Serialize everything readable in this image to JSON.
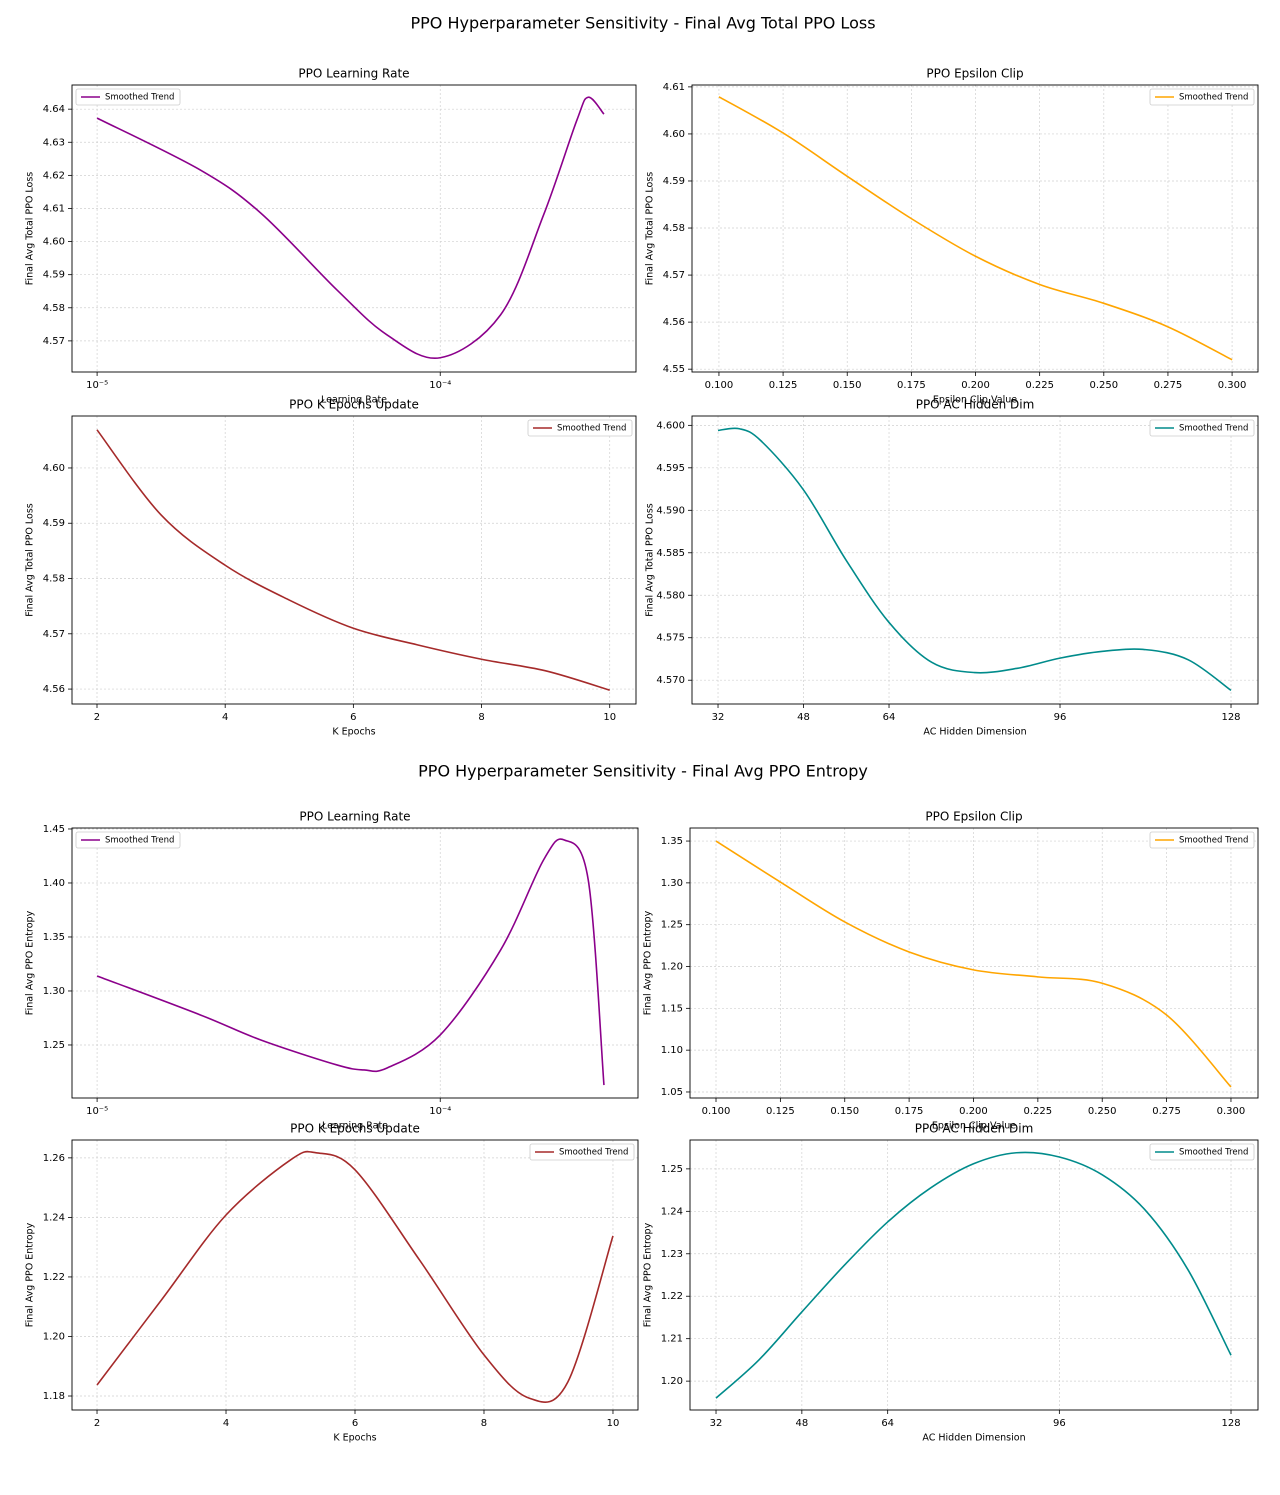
{
  "figure_titles": [
    "PPO Hyperparameter Sensitivity - Final Avg Total PPO Loss",
    "PPO Hyperparameter Sensitivity - Final Avg PPO Entropy"
  ],
  "chart_data": [
    {
      "type": "line",
      "title": "PPO Learning Rate",
      "xlabel": "Learning Rate",
      "ylabel": "Final Avg Total PPO Loss",
      "xscale": "log",
      "grid": true,
      "legend": "upper left",
      "x": [
        1e-05,
        2e-05,
        3e-05,
        5e-05,
        7e-05,
        0.0001,
        0.00015,
        0.0002,
        0.00025,
        0.00027,
        0.0003
      ],
      "series": [
        {
          "name": "Smoothed Trend",
          "color": "#8b008b",
          "values": [
            4.6373,
            4.6216,
            4.6086,
            4.5854,
            4.5718,
            4.5649,
            4.5779,
            4.608,
            4.6366,
            4.6436,
            4.6385
          ]
        }
      ],
      "xlim": [
        8.45e-06,
        0.000372
      ],
      "xticks": [
        {
          "value": 1e-05,
          "label": "10⁻⁵"
        },
        {
          "value": 0.0001,
          "label": "10⁻⁴"
        }
      ],
      "ylim": [
        4.5606,
        4.6473
      ],
      "yticks": [
        4.57,
        4.58,
        4.59,
        {
          "value": 4.6,
          "label": "4.60"
        },
        4.61,
        4.62,
        4.63,
        4.64
      ]
    },
    {
      "type": "line",
      "title": "PPO Epsilon Clip",
      "xlabel": "Epsilon Clip Value",
      "ylabel": "Final Avg Total PPO Loss",
      "grid": true,
      "legend": "upper right",
      "x": [
        0.1,
        0.125,
        0.15,
        0.175,
        0.2,
        0.225,
        0.25,
        0.275,
        0.3
      ],
      "series": [
        {
          "name": "Smoothed Trend",
          "color": "#ffa500",
          "values": [
            4.6079,
            4.6002,
            4.591,
            4.582,
            4.574,
            4.568,
            4.564,
            4.559,
            4.552
          ]
        }
      ],
      "xlim": [
        0.0895,
        0.3101
      ],
      "xticks": [
        {
          "value": 0.1,
          "label": "0.100"
        },
        0.125,
        {
          "value": 0.15,
          "label": "0.150"
        },
        0.175,
        {
          "value": 0.2,
          "label": "0.200"
        },
        0.225,
        {
          "value": 0.25,
          "label": "0.250"
        },
        0.275,
        {
          "value": 0.3,
          "label": "0.300"
        }
      ],
      "ylim": [
        4.5494,
        4.6104
      ],
      "yticks": [
        4.55,
        4.56,
        4.57,
        4.58,
        4.59,
        {
          "value": 4.6,
          "label": "4.60"
        },
        4.61
      ]
    },
    {
      "type": "line",
      "title": "PPO K Epochs Update",
      "xlabel": "K Epochs",
      "ylabel": "Final Avg Total PPO Loss",
      "grid": true,
      "legend": "upper right",
      "x": [
        2,
        3,
        4,
        5,
        6,
        7,
        8,
        9,
        10
      ],
      "series": [
        {
          "name": "Smoothed Trend",
          "color": "#a52a2a",
          "values": [
            4.6069,
            4.5915,
            4.5824,
            4.5761,
            4.571,
            4.568,
            4.5654,
            4.5633,
            4.5598
          ]
        }
      ],
      "xlim": [
        1.61,
        10.41
      ],
      "xticks": [
        2,
        4,
        6,
        8,
        10
      ],
      "ylim": [
        4.5573,
        4.6094
      ],
      "yticks": [
        4.56,
        4.57,
        4.58,
        4.59,
        {
          "value": 4.6,
          "label": "4.60"
        }
      ]
    },
    {
      "type": "line",
      "title": "PPO AC Hidden Dim",
      "xlabel": "AC Hidden Dimension",
      "ylabel": "Final Avg Total PPO Loss",
      "grid": true,
      "legend": "upper right",
      "x": [
        32,
        36,
        40,
        48,
        56,
        64,
        72,
        80,
        88,
        96,
        104,
        112,
        120,
        128
      ],
      "series": [
        {
          "name": "Smoothed Trend",
          "color": "#008b8b",
          "values": [
            4.5994,
            4.5996,
            4.5982,
            4.5924,
            4.5841,
            4.5768,
            4.5721,
            4.5709,
            4.5714,
            4.5726,
            4.5734,
            4.5736,
            4.5724,
            4.5688
          ]
        }
      ],
      "xlim": [
        27.13,
        133.05
      ],
      "xticks": [
        32,
        48,
        64,
        96,
        128
      ],
      "ylim": [
        4.5672,
        4.6011
      ],
      "yticks": [
        {
          "value": 4.57,
          "label": "4.570"
        },
        4.575,
        {
          "value": 4.58,
          "label": "4.580"
        },
        4.585,
        {
          "value": 4.59,
          "label": "4.590"
        },
        4.595,
        {
          "value": 4.6,
          "label": "4.600"
        }
      ]
    },
    {
      "type": "line",
      "title": "PPO Learning Rate",
      "xlabel": "Learning Rate",
      "ylabel": "Final Avg PPO Entropy",
      "xscale": "log",
      "grid": true,
      "legend": "upper left",
      "x": [
        1e-05,
        2e-05,
        3e-05,
        5e-05,
        6e-05,
        7e-05,
        0.0001,
        0.00015,
        0.0002,
        0.00023,
        0.00027,
        0.0003
      ],
      "series": [
        {
          "name": "Smoothed Trend",
          "color": "#8b008b",
          "values": [
            1.3139,
            1.2778,
            1.2546,
            1.2315,
            1.2269,
            1.2287,
            1.2593,
            1.338,
            1.4213,
            1.4398,
            1.4028,
            1.2129
          ]
        }
      ],
      "xlim": [
        8.45e-06,
        0.000377
      ],
      "xticks": [
        {
          "value": 1e-05,
          "label": "10⁻⁵"
        },
        {
          "value": 0.0001,
          "label": "10⁻⁴"
        }
      ],
      "ylim": [
        1.2009,
        1.4509
      ],
      "yticks": [
        1.25,
        {
          "value": 1.3,
          "label": "1.30"
        },
        1.35,
        {
          "value": 1.4,
          "label": "1.40"
        },
        1.45
      ]
    },
    {
      "type": "line",
      "title": "PPO Epsilon Clip",
      "xlabel": "Epsilon Clip Value",
      "ylabel": "Final Avg PPO Entropy",
      "grid": true,
      "legend": "upper right",
      "x": [
        0.1,
        0.125,
        0.15,
        0.175,
        0.2,
        0.225,
        0.25,
        0.275,
        0.3
      ],
      "series": [
        {
          "name": "Smoothed Trend",
          "color": "#ffa500",
          "values": [
            1.35,
            1.301,
            1.2533,
            1.2174,
            1.196,
            1.1876,
            1.18,
            1.142,
            1.056
          ]
        }
      ],
      "xlim": [
        0.0899,
        0.3105
      ],
      "xticks": [
        {
          "value": 0.1,
          "label": "0.100"
        },
        0.125,
        {
          "value": 0.15,
          "label": "0.150"
        },
        0.175,
        {
          "value": 0.2,
          "label": "0.200"
        },
        0.225,
        {
          "value": 0.25,
          "label": "0.250"
        },
        0.275,
        {
          "value": 0.3,
          "label": "0.300"
        }
      ],
      "ylim": [
        1.0428,
        1.3656
      ],
      "yticks": [
        1.05,
        {
          "value": 1.1,
          "label": "1.10"
        },
        1.15,
        {
          "value": 1.2,
          "label": "1.20"
        },
        1.25,
        {
          "value": 1.3,
          "label": "1.30"
        },
        1.35
      ]
    },
    {
      "type": "line",
      "title": "PPO K Epochs Update",
      "xlabel": "K Epochs",
      "ylabel": "Final Avg PPO Entropy",
      "grid": true,
      "legend": "upper right",
      "x": [
        2,
        3,
        4,
        5,
        5.4,
        6,
        7,
        8,
        8.7,
        9.3,
        10
      ],
      "series": [
        {
          "name": "Smoothed Trend",
          "color": "#a52a2a",
          "values": [
            1.1837,
            1.2123,
            1.2408,
            1.2593,
            1.2617,
            1.256,
            1.2257,
            1.1938,
            1.1793,
            1.1847,
            1.2338
          ]
        }
      ],
      "xlim": [
        1.612,
        10.388
      ],
      "xticks": [
        2,
        4,
        6,
        8,
        10
      ],
      "ylim": [
        1.1753,
        1.266
      ],
      "yticks": [
        1.18,
        {
          "value": 1.2,
          "label": "1.20"
        },
        1.22,
        1.24,
        1.26
      ]
    },
    {
      "type": "line",
      "title": "PPO AC Hidden Dim",
      "xlabel": "AC Hidden Dimension",
      "ylabel": "Final Avg PPO Entropy",
      "grid": true,
      "legend": "upper right",
      "x": [
        32,
        40,
        48,
        56,
        64,
        72,
        80,
        88,
        96,
        104,
        112,
        120,
        128
      ],
      "series": [
        {
          "name": "Smoothed Trend",
          "color": "#008b8b",
          "values": [
            1.196,
            1.205,
            1.2163,
            1.2274,
            1.2375,
            1.2455,
            1.2512,
            1.2538,
            1.2528,
            1.2486,
            1.2403,
            1.2262,
            1.2061
          ]
        }
      ],
      "xlim": [
        27.15,
        133.03
      ],
      "xticks": [
        32,
        48,
        64,
        96,
        128
      ],
      "ylim": [
        1.1932,
        1.2568
      ],
      "yticks": [
        {
          "value": 1.2,
          "label": "1.20"
        },
        1.21,
        1.22,
        1.23,
        1.24,
        1.25
      ]
    }
  ]
}
